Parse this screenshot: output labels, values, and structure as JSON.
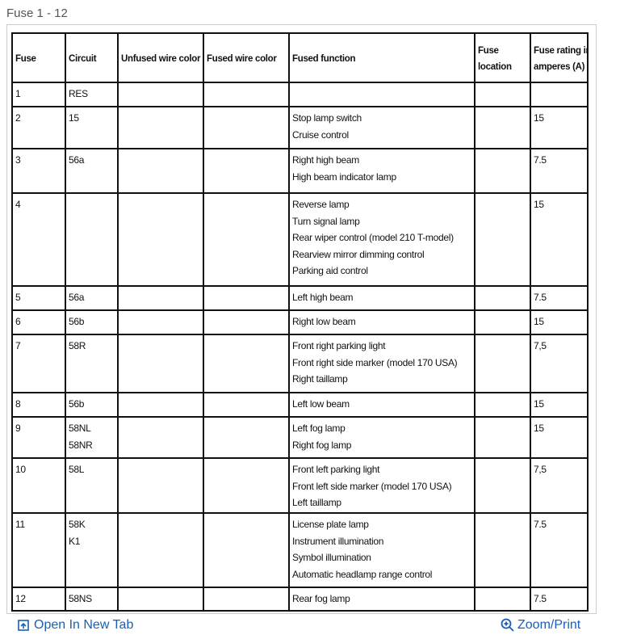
{
  "caption": "Fuse 1 - 12",
  "table": {
    "header": [
      [
        "Fuse"
      ],
      [
        "Circuit"
      ],
      [
        "Unfused wire color"
      ],
      [
        "Fused wire color"
      ],
      [
        "Fused function"
      ],
      [
        "Fuse",
        "location"
      ],
      [
        "Fuse rating in",
        "amperes (A)"
      ]
    ],
    "rows": [
      [
        [
          "1"
        ],
        [
          "RES"
        ],
        null,
        null,
        null,
        null,
        null
      ],
      [
        [
          "2"
        ],
        [
          "15"
        ],
        null,
        null,
        [
          "Stop lamp switch",
          "Cruise control"
        ],
        null,
        [
          "15"
        ]
      ],
      [
        [
          "3"
        ],
        [
          "56a"
        ],
        null,
        null,
        [
          "Right high beam",
          "High beam indicator lamp"
        ],
        null,
        [
          "7.5"
        ]
      ],
      [
        [
          "4"
        ],
        null,
        null,
        null,
        [
          "Reverse lamp",
          "Turn signal lamp",
          "Rear wiper control (model 210 T-model)",
          "Rearview mirror dimming control",
          "Parking aid control"
        ],
        null,
        [
          "15"
        ]
      ],
      [
        [
          "5"
        ],
        [
          "56a"
        ],
        null,
        null,
        [
          "Left high beam"
        ],
        null,
        [
          "7.5"
        ]
      ],
      [
        [
          "6"
        ],
        [
          "56b"
        ],
        null,
        null,
        [
          "Right low beam"
        ],
        null,
        [
          "15"
        ]
      ],
      [
        [
          "7"
        ],
        [
          "58R"
        ],
        null,
        null,
        [
          "Front right parking light",
          "Front right side marker (model 170 USA)",
          "Right taillamp"
        ],
        null,
        [
          "7,5"
        ]
      ],
      [
        [
          "8"
        ],
        [
          "56b"
        ],
        null,
        null,
        [
          "Left low beam"
        ],
        null,
        [
          "15"
        ]
      ],
      [
        [
          "9"
        ],
        [
          "58NL",
          "58NR"
        ],
        null,
        null,
        [
          "Left fog lamp",
          "Right fog lamp"
        ],
        null,
        [
          "15"
        ]
      ],
      [
        [
          "10"
        ],
        [
          "58L"
        ],
        null,
        null,
        [
          "Front left parking light",
          "Front left side marker (model 170 USA)",
          "Left taillamp"
        ],
        null,
        [
          "7,5"
        ]
      ],
      [
        [
          "11"
        ],
        [
          "58K",
          "K1"
        ],
        null,
        null,
        [
          "License plate lamp",
          "Instrument illumination",
          "Symbol illumination",
          "Automatic headlamp range control"
        ],
        null,
        [
          "7.5"
        ]
      ],
      [
        [
          "12"
        ],
        [
          "58NS"
        ],
        null,
        null,
        [
          "Rear fog lamp"
        ],
        null,
        [
          "7.5"
        ]
      ]
    ]
  },
  "footer": {
    "open_link": "Open In New Tab",
    "zoom_link": "Zoom/Print"
  }
}
